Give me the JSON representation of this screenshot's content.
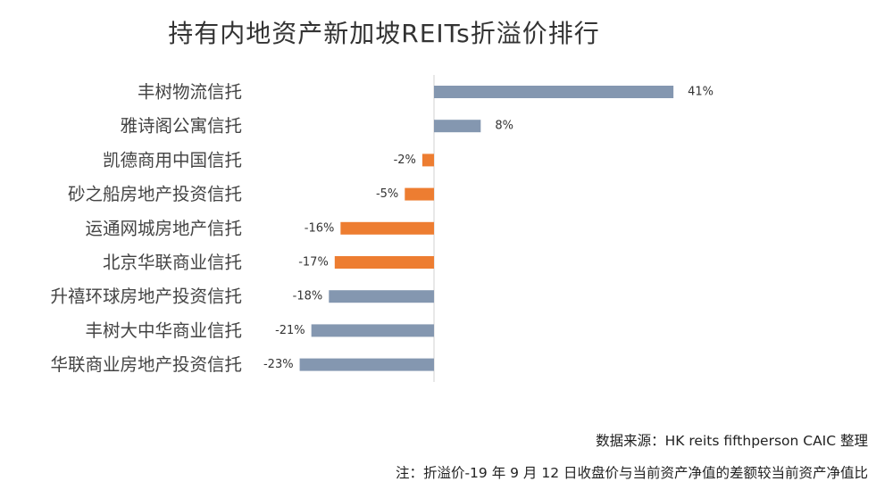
{
  "chart_data": {
    "type": "bar",
    "orientation": "horizontal",
    "title": "持有内地资产新加坡REITs折溢价排行",
    "categories": [
      "丰树物流信托",
      "雅诗阁公寓信托",
      "凯德商用中国信托",
      "砂之船房地产投资信托",
      "运通网城房地产信托",
      "北京华联商业信托",
      "升禧环球房地产投资信托",
      "丰树大中华商业信托",
      "华联商业房地产投资信托"
    ],
    "values": [
      41,
      8,
      -2,
      -5,
      -16,
      -17,
      -18,
      -21,
      -23
    ],
    "value_labels": [
      "41%",
      "8%",
      "-2%",
      "-5%",
      "-16%",
      "-17%",
      "-18%",
      "-21%",
      "-23%"
    ],
    "bar_colors": [
      "#8497B0",
      "#8497B0",
      "#ED7D31",
      "#ED7D31",
      "#ED7D31",
      "#ED7D31",
      "#8497B0",
      "#8497B0",
      "#8497B0"
    ],
    "xlim": [
      -23,
      41
    ],
    "grid": false,
    "legend": "none"
  },
  "notes": {
    "source": "数据来源：HK reits fifthperson CAIC 整理",
    "footnote": "注：折溢价-19 年 9 月 12 日收盘价与当前资产净值的差额较当前资产净值比"
  }
}
